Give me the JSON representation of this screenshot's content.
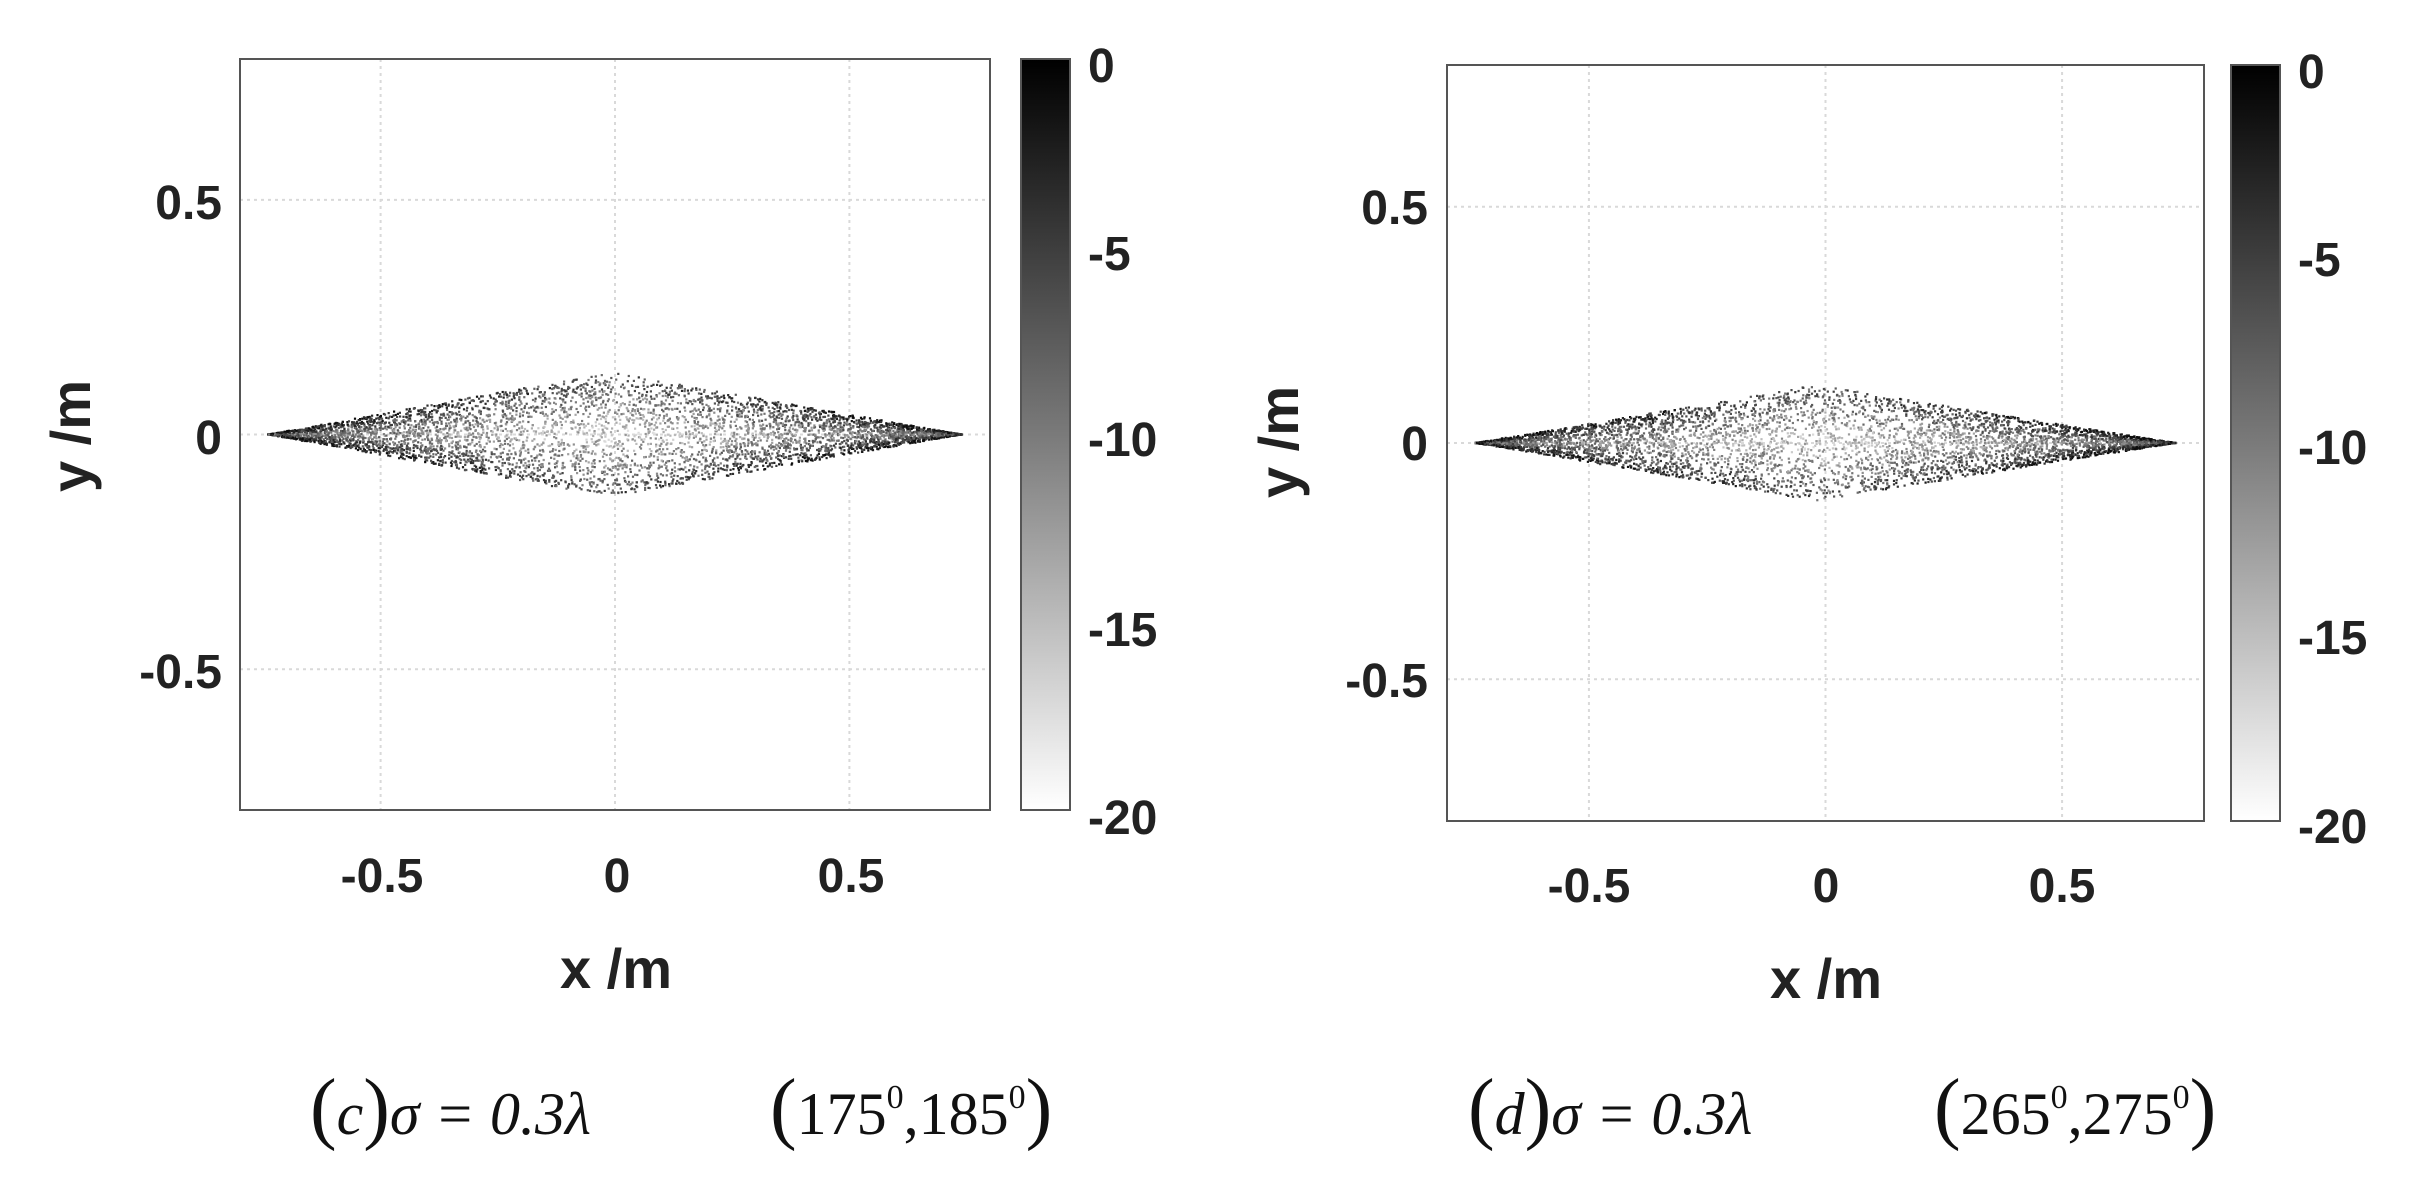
{
  "chart_data": [
    {
      "type": "heatmap",
      "panel": "c",
      "xlabel": "x /m",
      "ylabel": "y /m",
      "xlim": [
        -0.8,
        0.8
      ],
      "ylim": [
        -0.8,
        0.8
      ],
      "xticks": [
        -0.5,
        0,
        0.5
      ],
      "yticks": [
        -0.5,
        0,
        0.5
      ],
      "grid": true,
      "colormap": "gray (black = 0 dB, white = -20 dB)",
      "colorbar": {
        "range": [
          -20,
          0
        ],
        "ticks": [
          0,
          -5,
          -10,
          -15,
          -20
        ]
      },
      "scatter_region": {
        "shape": "diamond",
        "x_extent": [
          -0.74,
          0.74
        ],
        "y_extent": [
          -0.13,
          0.13
        ],
        "peak_x": -0.01
      },
      "caption": {
        "label": "(c)σ = 0.3λ",
        "range": "(175°,185°)",
        "parts": {
          "open": "(",
          "letter": "c",
          "close": ")",
          "sigma": "σ = 0.3λ",
          "r1": "175",
          "r2": "185",
          "deg": "0"
        }
      }
    },
    {
      "type": "heatmap",
      "panel": "d",
      "xlabel": "x /m",
      "ylabel": "y /m",
      "xlim": [
        -0.8,
        0.8
      ],
      "ylim": [
        -0.8,
        0.8
      ],
      "xticks": [
        -0.5,
        0,
        0.5
      ],
      "yticks": [
        -0.5,
        0,
        0.5
      ],
      "grid": true,
      "colormap": "gray (black = 0 dB, white = -20 dB)",
      "colorbar": {
        "range": [
          -20,
          0
        ],
        "ticks": [
          0,
          -5,
          -10,
          -15,
          -20
        ]
      },
      "scatter_region": {
        "shape": "diamond",
        "x_extent": [
          -0.74,
          0.74
        ],
        "y_extent": [
          -0.12,
          0.12
        ],
        "peak_x": -0.02
      },
      "caption": {
        "label": "(d)σ = 0.3λ",
        "range": "(265°,275°)",
        "parts": {
          "open": "(",
          "letter": "d",
          "close": ")",
          "sigma": "σ = 0.3λ",
          "r1": "265",
          "r2": "275",
          "deg": "0"
        }
      }
    }
  ],
  "colors": {
    "axis": "#555555",
    "grid": "#d9d9d9",
    "text": "#222222",
    "dark": "#000000",
    "light": "#ffffff"
  }
}
